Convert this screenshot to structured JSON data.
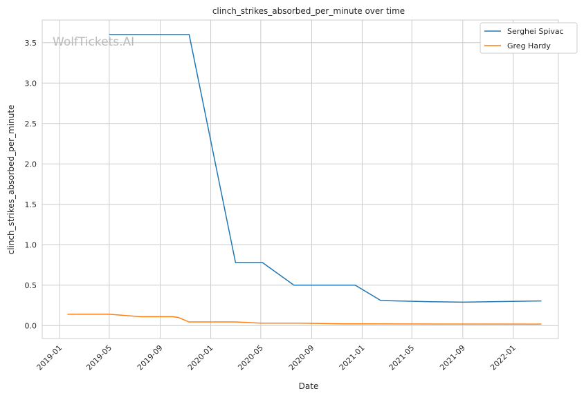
{
  "chart_data": {
    "type": "line",
    "title": "clinch_strikes_absorbed_per_minute over time",
    "xlabel": "Date",
    "ylabel": "clinch_strikes_absorbed_per_minute",
    "watermark": "WolfTickets.AI",
    "x_ticks": [
      "2019-01",
      "2019-05",
      "2019-09",
      "2020-01",
      "2020-05",
      "2020-09",
      "2021-01",
      "2021-05",
      "2021-09",
      "2022-01"
    ],
    "y_ticks": [
      0.0,
      0.5,
      1.0,
      1.5,
      2.0,
      2.5,
      3.0,
      3.5
    ],
    "y_tick_labels": [
      "0.0",
      "0.5",
      "1.0",
      "1.5",
      "2.0",
      "2.5",
      "3.0",
      "3.5"
    ],
    "xlim": [
      "2018-11-20",
      "2022-04-20"
    ],
    "ylim": [
      -0.16,
      3.78
    ],
    "grid": true,
    "legend": "top-right",
    "series": [
      {
        "name": "Serghei Spivac",
        "color": "#1f77b4",
        "x": [
          "2019-05-01",
          "2019-11-10",
          "2020-03-01",
          "2020-05-05",
          "2020-07-20",
          "2020-12-15",
          "2021-02-15",
          "2021-06-15",
          "2021-09-01",
          "2022-03-10"
        ],
        "y": [
          3.6,
          3.6,
          0.78,
          0.78,
          0.5,
          0.5,
          0.31,
          0.295,
          0.29,
          0.305
        ]
      },
      {
        "name": "Greg Hardy",
        "color": "#ff7f0e",
        "x": [
          "2019-01-20",
          "2019-05-01",
          "2019-07-15",
          "2019-10-01",
          "2019-10-15",
          "2019-11-10",
          "2020-03-01",
          "2020-05-01",
          "2020-08-01",
          "2020-11-15",
          "2021-06-15",
          "2022-03-10"
        ],
        "y": [
          0.14,
          0.14,
          0.11,
          0.11,
          0.1,
          0.045,
          0.045,
          0.03,
          0.03,
          0.022,
          0.02,
          0.018
        ]
      }
    ]
  }
}
